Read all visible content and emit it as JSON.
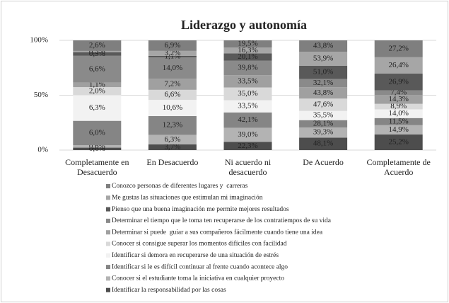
{
  "chart_data": {
    "type": "stacked_bar_100",
    "title": "Liderazgo y autonomía",
    "categories": [
      "Completamente en Desacuerdo",
      "En Desacuerdo",
      "Ni acuerdo ni desacuerdo",
      "De Acuerdo",
      "Completamente de Acuerdo"
    ],
    "ylim": [
      0,
      100
    ],
    "yticks": [
      {
        "value": 0,
        "label": "0%"
      },
      {
        "value": 50,
        "label": "50%"
      },
      {
        "value": 100,
        "label": "100%"
      }
    ],
    "grid": true,
    "legend": "bottom",
    "series": [
      {
        "name": "Conozco personas de diferentes lugares y  carreras",
        "color": "#7f7f7f",
        "values": [
          2.6,
          6.9,
          19.5,
          43.8,
          27.2
        ],
        "value_labels": [
          "2,6%",
          "6,9%",
          "19,5%",
          "43,8%",
          "27,2%"
        ]
      },
      {
        "name": "Me gustas las situaciones que estimulan mi imaginación",
        "color": "#a6a6a6",
        "values": [
          0.3,
          3.2,
          16.3,
          53.9,
          26.4
        ],
        "value_labels": [
          "0,3%",
          "3,2%",
          "16,3%",
          "53,9%",
          "26,4%"
        ]
      },
      {
        "name": "Pienso que una buena imaginación me permite mejores resultados",
        "color": "#595959",
        "values": [
          0.9,
          1.1,
          20.1,
          51.0,
          26.9
        ],
        "value_labels": [
          "0,9%",
          "1,1%",
          "20,1%",
          "51,0%",
          "26,9%"
        ]
      },
      {
        "name": "Determinar el tiempo que le toma ten recuperarse de los contratiempos de su vida",
        "color": "#8a8a8a",
        "values": [
          6.6,
          14.0,
          39.8,
          32.1,
          7.4
        ],
        "value_labels": [
          "6,6%",
          "14,0%",
          "39,8%",
          "32,1%",
          "7,4%"
        ]
      },
      {
        "name": "Determinar si puede  guiar a sus compañeros fácilmente cuando tiene una idea",
        "color": "#a0a0a0",
        "values": [
          1.1,
          7.2,
          33.5,
          43.8,
          14.3
        ],
        "value_labels": [
          "1,1%",
          "7,2%",
          "33,5%",
          "43,8%",
          "14,3%"
        ]
      },
      {
        "name": "Conocer si consigue superar los momentos difíciles con facilidad",
        "color": "#d9d9d9",
        "values": [
          2.0,
          6.6,
          35.0,
          47.6,
          8.9
        ],
        "value_labels": [
          "2,0%",
          "6,6%",
          "35,0%",
          "47,6%",
          "8,9%"
        ]
      },
      {
        "name": "Identificar si demora en recuperarse de una situación de estrés",
        "color": "#f2f2f2",
        "values": [
          6.3,
          10.6,
          33.5,
          35.5,
          14.0
        ],
        "value_labels": [
          "6,3%",
          "10,6%",
          "33,5%",
          "35,5%",
          "14,0%"
        ]
      },
      {
        "name": "Identificar si le es difícil continuar al frente cuando acontece algo",
        "color": "#858585",
        "values": [
          6.0,
          12.3,
          42.1,
          28.1,
          11.5
        ],
        "value_labels": [
          "6,0%",
          "12,3%",
          "42,1%",
          "28,1%",
          "11,5%"
        ]
      },
      {
        "name": "Conocer si el estudiante toma la iniciativa en cualquier proyecto",
        "color": "#b3b3b3",
        "values": [
          0.6,
          6.3,
          39.0,
          39.3,
          14.9
        ],
        "value_labels": [
          "0,6%",
          "6,3%",
          "39,0%",
          "39,3%",
          "14,9%"
        ]
      },
      {
        "name": "Identificar la responsabilidad por las cosas",
        "color": "#4d4d4d",
        "values": [
          0.6,
          3.7,
          22.3,
          48.1,
          25.2
        ],
        "value_labels": [
          "0,6%",
          "3,7%",
          "22,3%",
          "48,1%",
          "25,2%"
        ]
      }
    ]
  }
}
